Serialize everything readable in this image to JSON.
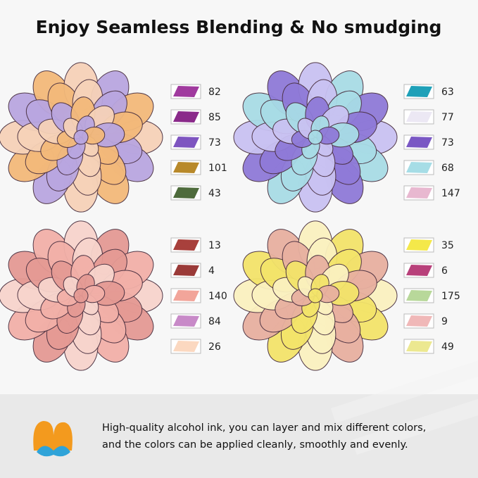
{
  "title": "Enjoy Seamless Blending & No smudging",
  "panels": [
    {
      "swatches": [
        {
          "color": "#a03a9e",
          "number": 82
        },
        {
          "color": "#8a2a8a",
          "number": 85
        },
        {
          "color": "#7e55c0",
          "number": 73
        },
        {
          "color": "#b8892a",
          "number": 101
        },
        {
          "color": "#4e6b3c",
          "number": 43
        }
      ]
    },
    {
      "swatches": [
        {
          "color": "#1ea0b8",
          "number": 63
        },
        {
          "color": "#ece8f4",
          "number": 77
        },
        {
          "color": "#7a58c4",
          "number": 73
        },
        {
          "color": "#a6dde6",
          "number": 68
        },
        {
          "color": "#e8b8d0",
          "number": 147
        }
      ]
    },
    {
      "swatches": [
        {
          "color": "#a8403c",
          "number": 13
        },
        {
          "color": "#9a3a38",
          "number": 4
        },
        {
          "color": "#f2a59a",
          "number": 140
        },
        {
          "color": "#c88ac8",
          "number": 84
        },
        {
          "color": "#fbd8c0",
          "number": 26
        }
      ]
    },
    {
      "swatches": [
        {
          "color": "#f4e84a",
          "number": 35
        },
        {
          "color": "#b8407a",
          "number": 6
        },
        {
          "color": "#b8d89a",
          "number": 175
        },
        {
          "color": "#f0b8b8",
          "number": 9
        },
        {
          "color": "#ece890",
          "number": 49
        }
      ]
    }
  ],
  "footer": {
    "lines": [
      "High-quality alcohol ink, you can layer and mix different colors,",
      "and the colors can be applied cleanly, smoothly and evenly."
    ]
  }
}
